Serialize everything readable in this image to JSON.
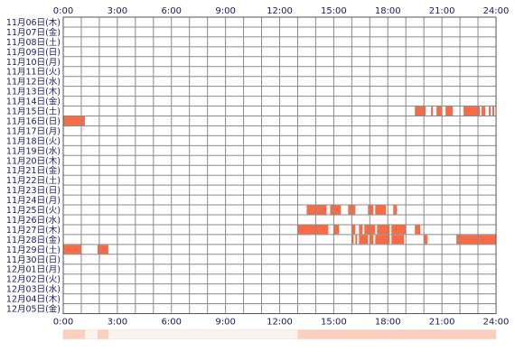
{
  "chart_data": {
    "type": "heatmap",
    "title": "",
    "xlabel": "",
    "ylabel": "",
    "x_range_hours": [
      0,
      24
    ],
    "x_tick_labels": [
      "0:00",
      "3:00",
      "6:00",
      "9:00",
      "12:00",
      "15:00",
      "18:00",
      "21:00",
      "24:00"
    ],
    "grid": true,
    "colors": {
      "activity": "#f76b45",
      "grid": "#8a8a8a",
      "frame": "#555555",
      "summary_bg": "#fdf3ee",
      "summary": "#f9c8b2"
    },
    "rows": [
      {
        "label": "11月06日(木)",
        "intervals": []
      },
      {
        "label": "11月07日(金)",
        "intervals": []
      },
      {
        "label": "11月08日(土)",
        "intervals": []
      },
      {
        "label": "11月09日(日)",
        "intervals": []
      },
      {
        "label": "11月10日(月)",
        "intervals": []
      },
      {
        "label": "11月11日(火)",
        "intervals": []
      },
      {
        "label": "11月12日(水)",
        "intervals": []
      },
      {
        "label": "11月13日(木)",
        "intervals": []
      },
      {
        "label": "11月14日(金)",
        "intervals": []
      },
      {
        "label": "11月15日(土)",
        "intervals": [
          [
            19.5,
            20.1
          ],
          [
            20.4,
            20.5
          ],
          [
            20.7,
            21.0
          ],
          [
            21.2,
            21.6
          ],
          [
            22.2,
            23.1
          ],
          [
            23.2,
            23.4
          ],
          [
            23.6,
            23.7
          ],
          [
            23.8,
            23.9
          ]
        ]
      },
      {
        "label": "11月16日(日)",
        "intervals": [
          [
            0.0,
            1.2
          ]
        ]
      },
      {
        "label": "11月17日(月)",
        "intervals": []
      },
      {
        "label": "11月18日(火)",
        "intervals": []
      },
      {
        "label": "11月19日(水)",
        "intervals": []
      },
      {
        "label": "11月20日(木)",
        "intervals": []
      },
      {
        "label": "11月21日(金)",
        "intervals": []
      },
      {
        "label": "11月22日(土)",
        "intervals": []
      },
      {
        "label": "11月23日(日)",
        "intervals": []
      },
      {
        "label": "11月24日(月)",
        "intervals": []
      },
      {
        "label": "11月25日(火)",
        "intervals": [
          [
            13.5,
            14.6
          ],
          [
            14.8,
            15.4
          ],
          [
            15.8,
            16.2
          ],
          [
            16.9,
            17.2
          ],
          [
            17.3,
            17.9
          ],
          [
            18.3,
            18.5
          ]
        ]
      },
      {
        "label": "11月26日(水)",
        "intervals": []
      },
      {
        "label": "11月27日(木)",
        "intervals": [
          [
            13.0,
            14.7
          ],
          [
            15.0,
            15.3
          ],
          [
            16.0,
            16.2
          ],
          [
            16.4,
            16.6
          ],
          [
            16.7,
            17.3
          ],
          [
            17.4,
            18.1
          ],
          [
            18.2,
            19.0
          ],
          [
            19.5,
            19.8
          ]
        ]
      },
      {
        "label": "11月28日(金)",
        "intervals": [
          [
            16.0,
            16.1
          ],
          [
            16.2,
            16.3
          ],
          [
            16.4,
            16.9
          ],
          [
            17.0,
            17.2
          ],
          [
            17.3,
            18.1
          ],
          [
            18.2,
            18.9
          ],
          [
            20.0,
            20.2
          ],
          [
            21.8,
            24.0
          ]
        ]
      },
      {
        "label": "11月29日(土)",
        "intervals": [
          [
            0.0,
            1.0
          ],
          [
            1.9,
            2.5
          ]
        ]
      },
      {
        "label": "11月30日(日)",
        "intervals": []
      },
      {
        "label": "12月01日(月)",
        "intervals": []
      },
      {
        "label": "12月02日(火)",
        "intervals": []
      },
      {
        "label": "12月03日(水)",
        "intervals": []
      },
      {
        "label": "12月04日(木)",
        "intervals": []
      },
      {
        "label": "12月05日(金)",
        "intervals": []
      }
    ],
    "summary_strip": [
      [
        0.0,
        1.2
      ],
      [
        1.9,
        2.5
      ],
      [
        13.0,
        24.0
      ]
    ]
  }
}
